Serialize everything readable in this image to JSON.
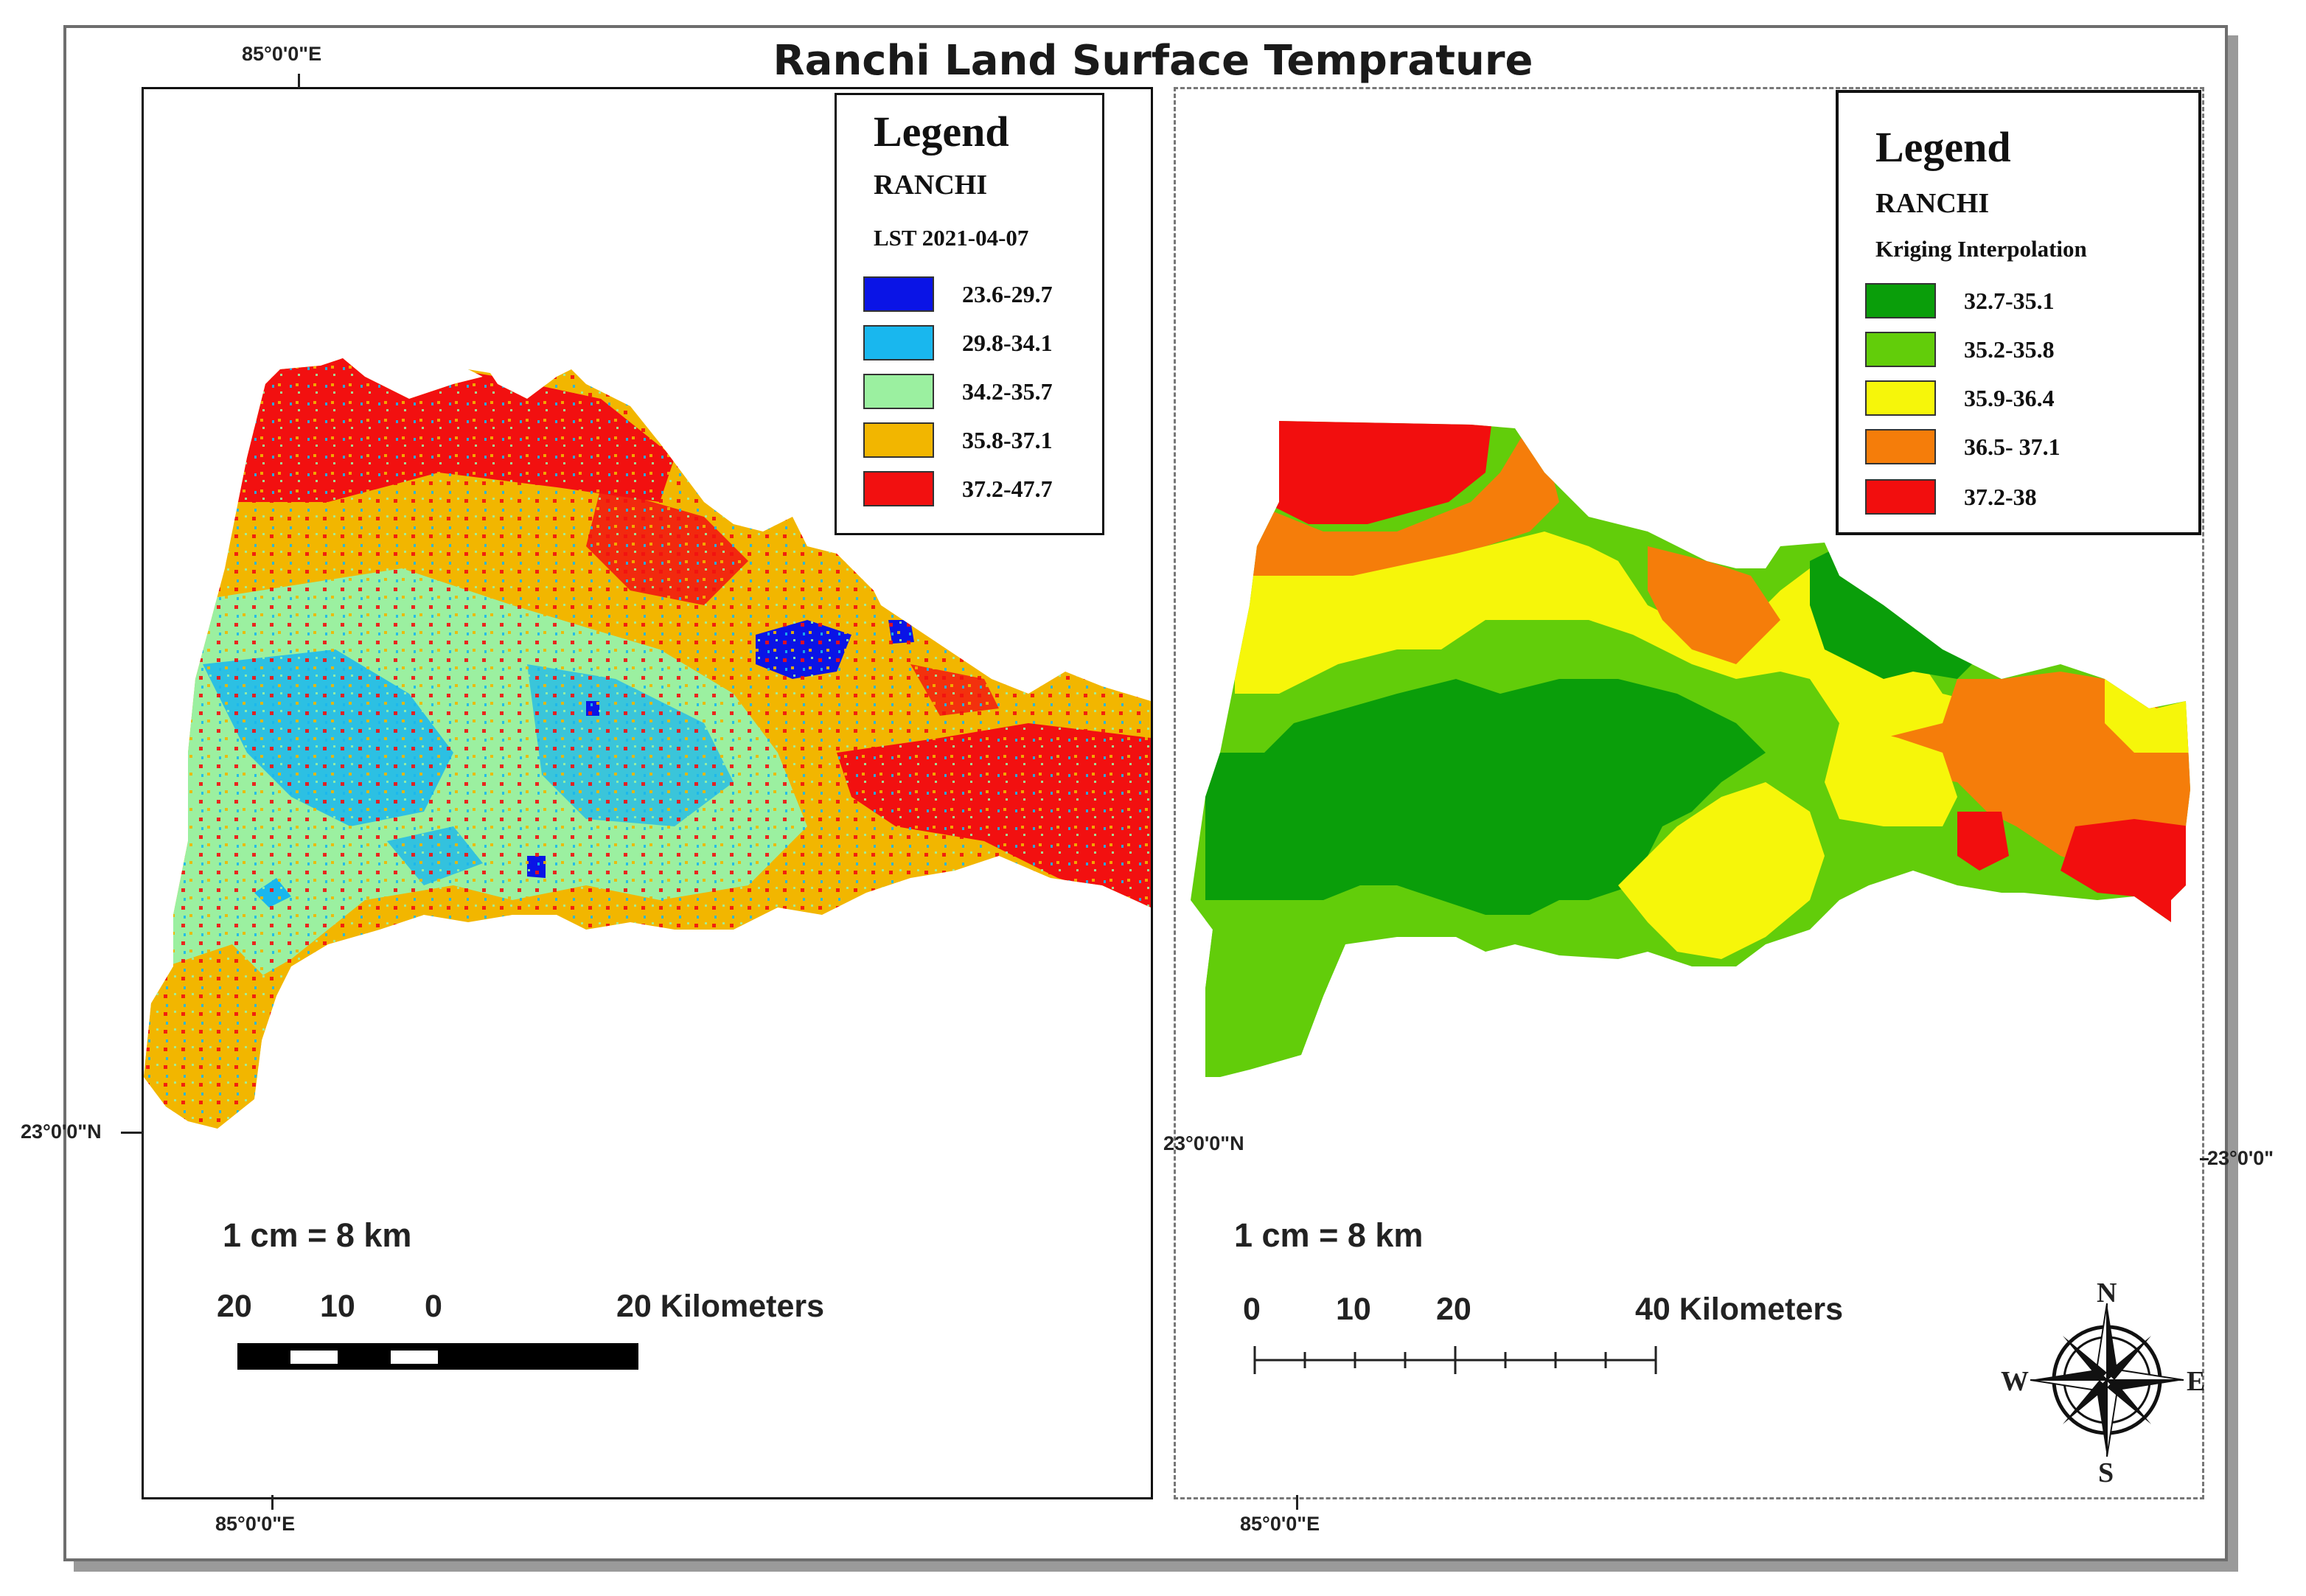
{
  "title": "Ranchi Land Surface Temprature",
  "left_map": {
    "coord_top": "85°0'0\"E",
    "coord_bottom": "85°0'0\"E",
    "coord_left": "23°0'0\"N",
    "legend": {
      "title": "Legend",
      "subtitle": "RANCHI",
      "layer": "LST 2021-04-07",
      "items": [
        {
          "label": "23.6-29.7",
          "color": "#0a14e6"
        },
        {
          "label": "29.8-34.1",
          "color": "#19b7ee"
        },
        {
          "label": "34.2-35.7",
          "color": "#9bf0a0"
        },
        {
          "label": "35.8-37.1",
          "color": "#f2b600"
        },
        {
          "label": "37.2-47.7",
          "color": "#f21010"
        }
      ]
    },
    "scale_text": "1 cm = 8 km",
    "scale_numbers": [
      "20",
      "10",
      "0",
      "20 Kilometers"
    ]
  },
  "right_map": {
    "coord_bottom": "85°0'0\"E",
    "coord_left": "23°0'0\"N",
    "coord_right": "23°0'0\"",
    "legend": {
      "title": "Legend",
      "subtitle": "RANCHI",
      "layer": "Kriging Interpolation",
      "items": [
        {
          "label": "32.7-35.1",
          "color": "#0a9e0a"
        },
        {
          "label": "35.2-35.8",
          "color": "#62cd0a"
        },
        {
          "label": "35.9-36.4",
          "color": "#f6f60a"
        },
        {
          "label": "36.5- 37.1",
          "color": "#f57d0a"
        },
        {
          "label": "37.2-38",
          "color": "#f20e0e"
        }
      ]
    },
    "scale_text": "1 cm = 8 km",
    "scale_numbers": [
      "0",
      "10",
      "20",
      "40 Kilometers"
    ],
    "north_arrow": {
      "n": "N",
      "s": "S",
      "e": "E",
      "w": "W"
    }
  }
}
